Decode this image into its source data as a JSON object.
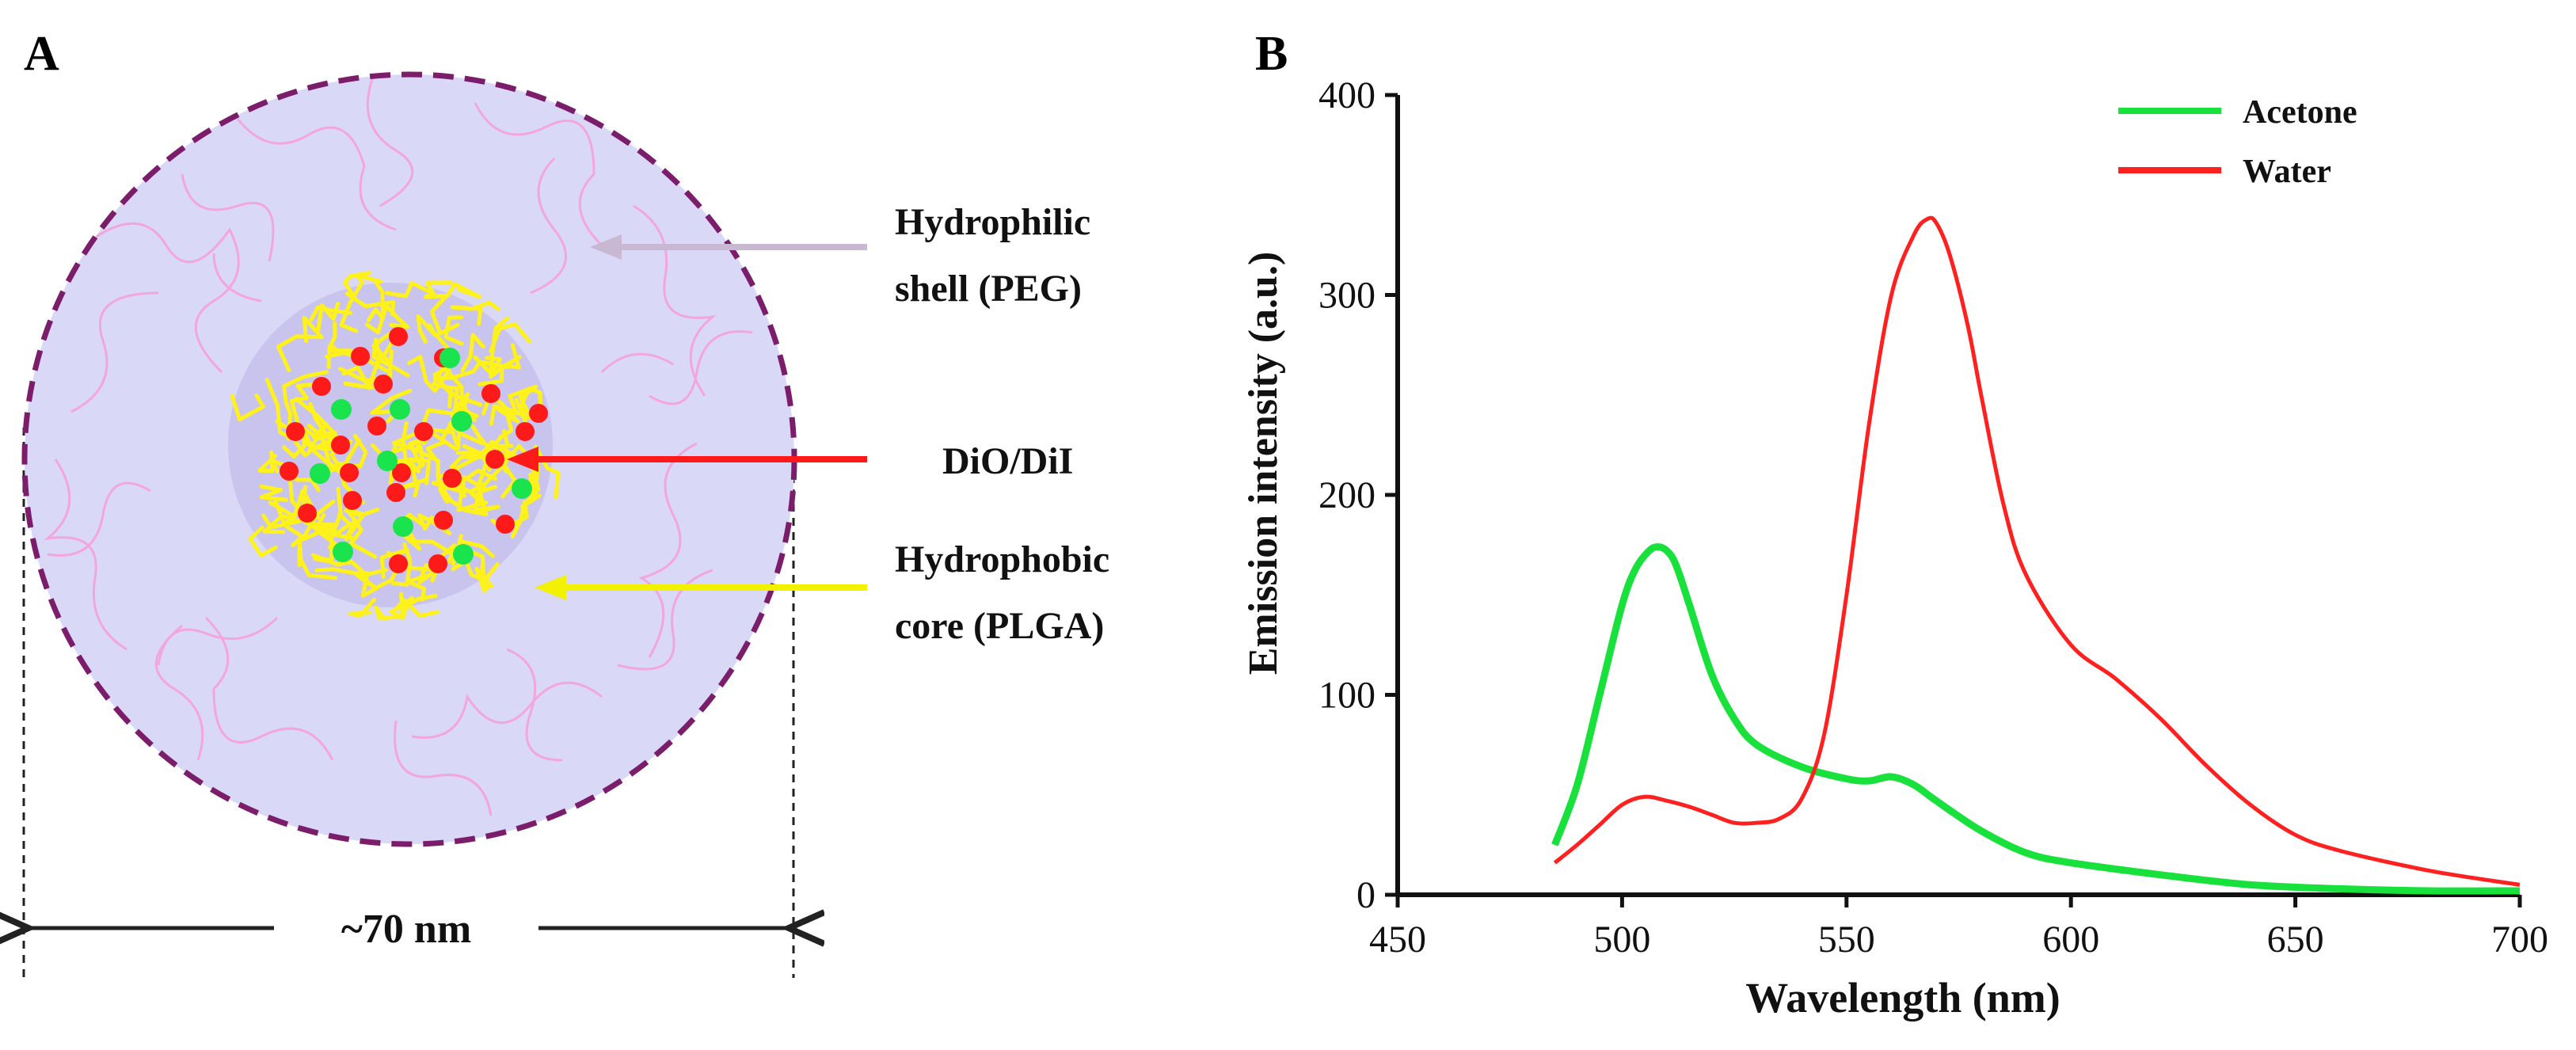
{
  "panel_a": {
    "label": "A",
    "annotations": {
      "shell": [
        "Hydrophilic",
        "shell (PEG)"
      ],
      "dye": "DiO/DiI",
      "core": [
        "Hydrophobic",
        "core (PLGA)"
      ]
    },
    "scale_label": "~70 nm",
    "colors": {
      "shell_fill": "#d9d8f6",
      "shell_border": "#7b1d6a",
      "peg_strand": "#f3a6dc",
      "core_strand": "#fff21a",
      "core_fill": "#c8c4ee",
      "dii_dot": "#ff1a1a",
      "dio_dot": "#19e34d",
      "shell_arrow": "#c9b8d2",
      "dye_arrow": "#ff1a1a",
      "core_arrow": "#f2f200"
    }
  },
  "chart_data": {
    "type": "line",
    "panel_label": "B",
    "title": "",
    "xlabel": "Wavelength (nm)",
    "ylabel": "Emission intensity (a.u.)",
    "xlim": [
      450,
      700
    ],
    "ylim": [
      0,
      400
    ],
    "xticks": [
      450,
      500,
      550,
      600,
      650,
      700
    ],
    "yticks": [
      0,
      100,
      200,
      300,
      400
    ],
    "grid": false,
    "legend_position": "top-right",
    "series": [
      {
        "name": "Acetone",
        "color": "#17e13a",
        "x": [
          485,
          490,
          495,
          500,
          503,
          506,
          508,
          510,
          512,
          515,
          520,
          525,
          530,
          540,
          550,
          555,
          560,
          565,
          570,
          580,
          590,
          600,
          620,
          640,
          660,
          680,
          700
        ],
        "y": [
          25,
          55,
          100,
          145,
          163,
          172,
          174,
          172,
          165,
          145,
          110,
          88,
          75,
          64,
          58,
          57,
          59,
          55,
          47,
          32,
          21,
          16,
          10,
          5,
          3,
          2,
          2
        ]
      },
      {
        "name": "Water",
        "color": "#ff2020",
        "x": [
          485,
          490,
          495,
          500,
          505,
          510,
          515,
          520,
          525,
          530,
          535,
          540,
          545,
          550,
          555,
          560,
          565,
          568,
          570,
          573,
          577,
          580,
          585,
          590,
          600,
          610,
          620,
          630,
          640,
          650,
          660,
          680,
          700
        ],
        "y": [
          16,
          25,
          35,
          45,
          49,
          47,
          44,
          40,
          36,
          36,
          38,
          48,
          80,
          150,
          235,
          300,
          330,
          338,
          336,
          320,
          285,
          250,
          195,
          160,
          125,
          108,
          88,
          65,
          45,
          30,
          22,
          12,
          5
        ]
      }
    ]
  }
}
